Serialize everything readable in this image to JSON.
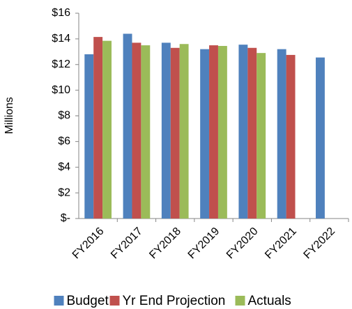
{
  "chart_data": {
    "type": "bar",
    "y_label": "Millions",
    "categories": [
      "FY2016",
      "FY2017",
      "FY2018",
      "FY2019",
      "FY2020",
      "FY2021",
      "FY2022"
    ],
    "series": [
      {
        "name": "Budget",
        "color": "#4f81bd",
        "values": [
          12.8,
          14.4,
          13.7,
          13.2,
          13.55,
          13.2,
          12.55
        ]
      },
      {
        "name": "Yr End Projection",
        "color": "#c0504d",
        "values": [
          14.15,
          13.7,
          13.3,
          13.5,
          13.3,
          12.75,
          null
        ]
      },
      {
        "name": "Actuals",
        "color": "#9bbb59",
        "values": [
          13.85,
          13.5,
          13.6,
          13.45,
          12.9,
          null,
          null
        ]
      }
    ],
    "ylim": [
      0,
      16
    ],
    "yticks": [
      {
        "value": 0,
        "label": "$-"
      },
      {
        "value": 2,
        "label": "$2"
      },
      {
        "value": 4,
        "label": "$4"
      },
      {
        "value": 6,
        "label": "$6"
      },
      {
        "value": 8,
        "label": "$8"
      },
      {
        "value": 10,
        "label": "$10"
      },
      {
        "value": 12,
        "label": "$12"
      },
      {
        "value": 14,
        "label": "$14"
      },
      {
        "value": 16,
        "label": "$16"
      }
    ],
    "grid": false,
    "legend": "bottom"
  }
}
